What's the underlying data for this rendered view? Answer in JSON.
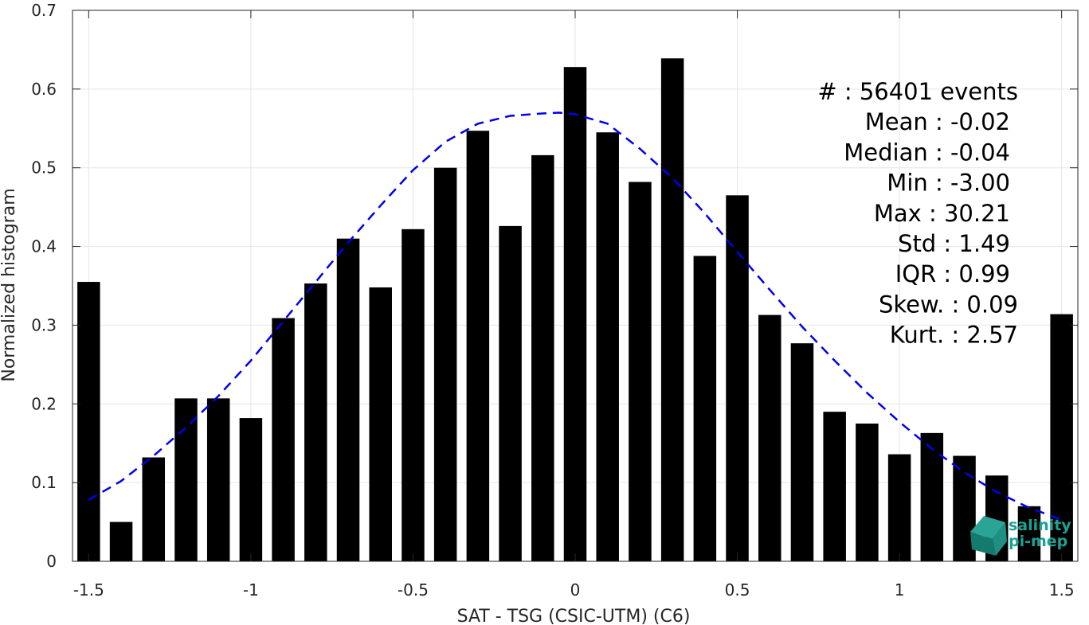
{
  "chart_data": {
    "type": "bar",
    "xlabel": "SAT - TSG (CSIC-UTM) (C6)",
    "ylabel": "Normalized histogram",
    "xlim": [
      -1.55,
      1.55
    ],
    "ylim": [
      0,
      0.7
    ],
    "grid": true,
    "x_ticks": [
      -1.5,
      -1,
      -0.5,
      0,
      0.5,
      1,
      1.5
    ],
    "x_tick_labels": [
      "-1.5",
      "-1",
      "-0.5",
      "0",
      "0.5",
      "1",
      "1.5"
    ],
    "y_ticks": [
      0,
      0.1,
      0.2,
      0.3,
      0.4,
      0.5,
      0.6,
      0.7
    ],
    "y_tick_labels": [
      "0",
      "0.1",
      "0.2",
      "0.3",
      "0.4",
      "0.5",
      "0.6",
      "0.7"
    ],
    "bar_width": 0.07,
    "bar_color": "#000000",
    "bars": {
      "x": [
        -1.5,
        -1.4,
        -1.3,
        -1.2,
        -1.1,
        -1.0,
        -0.9,
        -0.8,
        -0.7,
        -0.6,
        -0.5,
        -0.4,
        -0.3,
        -0.2,
        -0.1,
        0.0,
        0.1,
        0.2,
        0.3,
        0.4,
        0.5,
        0.6,
        0.7,
        0.8,
        0.9,
        1.0,
        1.1,
        1.2,
        1.3,
        1.4,
        1.5
      ],
      "values": [
        0.355,
        0.05,
        0.132,
        0.207,
        0.207,
        0.182,
        0.309,
        0.353,
        0.41,
        0.348,
        0.422,
        0.5,
        0.547,
        0.426,
        0.516,
        0.628,
        0.545,
        0.482,
        0.639,
        0.388,
        0.465,
        0.313,
        0.277,
        0.19,
        0.175,
        0.136,
        0.163,
        0.134,
        0.109,
        0.07,
        0.314
      ]
    },
    "fit_curve": {
      "style": "dashed",
      "color": "#0000ee",
      "x": [
        -1.5,
        -1.4,
        -1.3,
        -1.2,
        -1.1,
        -1.0,
        -0.9,
        -0.8,
        -0.7,
        -0.6,
        -0.5,
        -0.4,
        -0.3,
        -0.2,
        -0.1,
        -0.05,
        0.0,
        0.1,
        0.2,
        0.3,
        0.4,
        0.5,
        0.6,
        0.7,
        0.8,
        0.9,
        1.0,
        1.1,
        1.2,
        1.3,
        1.4,
        1.5
      ],
      "y": [
        0.078,
        0.102,
        0.134,
        0.17,
        0.21,
        0.255,
        0.305,
        0.355,
        0.405,
        0.452,
        0.497,
        0.533,
        0.556,
        0.566,
        0.569,
        0.57,
        0.568,
        0.556,
        0.524,
        0.487,
        0.442,
        0.393,
        0.345,
        0.298,
        0.255,
        0.214,
        0.177,
        0.143,
        0.113,
        0.088,
        0.068,
        0.053
      ]
    },
    "stats": [
      "#  : 56401 events",
      "Mean : -0.02",
      "Median : -0.04",
      "Min : -3.00",
      "Max : 30.21",
      "Std : 1.49",
      "IQR : 0.99",
      "Skew. : 0.09",
      "Kurt. : 2.57"
    ]
  },
  "logo": {
    "line1": "salinity",
    "line2": "pi-mep",
    "color": "#1aa394"
  }
}
